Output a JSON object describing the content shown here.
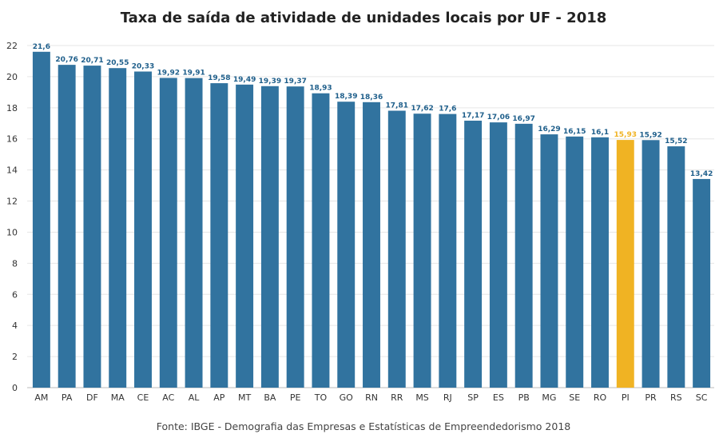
{
  "chart_data": {
    "type": "bar",
    "title": "Taxa de saída de atividade de unidades locais por UF - 2018",
    "source": "Fonte: IBGE - Demografia das Empresas e Estatísticas de Empreendedorismo 2018",
    "categories": [
      "AM",
      "PA",
      "DF",
      "MA",
      "CE",
      "AC",
      "AL",
      "AP",
      "MT",
      "BA",
      "PE",
      "TO",
      "GO",
      "RN",
      "RR",
      "MS",
      "RJ",
      "SP",
      "ES",
      "PB",
      "MG",
      "SE",
      "RO",
      "PI",
      "PR",
      "RS",
      "SC"
    ],
    "values": [
      21.6,
      20.76,
      20.71,
      20.55,
      20.33,
      19.92,
      19.91,
      19.58,
      19.49,
      19.39,
      19.37,
      18.93,
      18.39,
      18.36,
      17.81,
      17.62,
      17.6,
      17.17,
      17.06,
      16.97,
      16.29,
      16.15,
      16.1,
      15.93,
      15.92,
      15.52,
      13.42
    ],
    "value_labels": [
      "21,6",
      "20,76",
      "20,71",
      "20,55",
      "20,33",
      "19,92",
      "19,91",
      "19,58",
      "19,49",
      "19,39",
      "19,37",
      "18,93",
      "18,39",
      "18,36",
      "17,81",
      "17,62",
      "17,6",
      "17,17",
      "17,06",
      "16,97",
      "16,29",
      "16,15",
      "16,1",
      "15,93",
      "15,92",
      "15,52",
      "13,42"
    ],
    "highlight_category": "PI",
    "colors": {
      "bar": "#31739f",
      "highlight": "#f0b323",
      "label": "#1f5f8b"
    },
    "ylim": [
      0,
      22
    ],
    "yticks": [
      0,
      2,
      4,
      6,
      8,
      10,
      12,
      14,
      16,
      18,
      20,
      22
    ],
    "xlabel": "",
    "ylabel": "",
    "grid": true,
    "legend": "none"
  }
}
